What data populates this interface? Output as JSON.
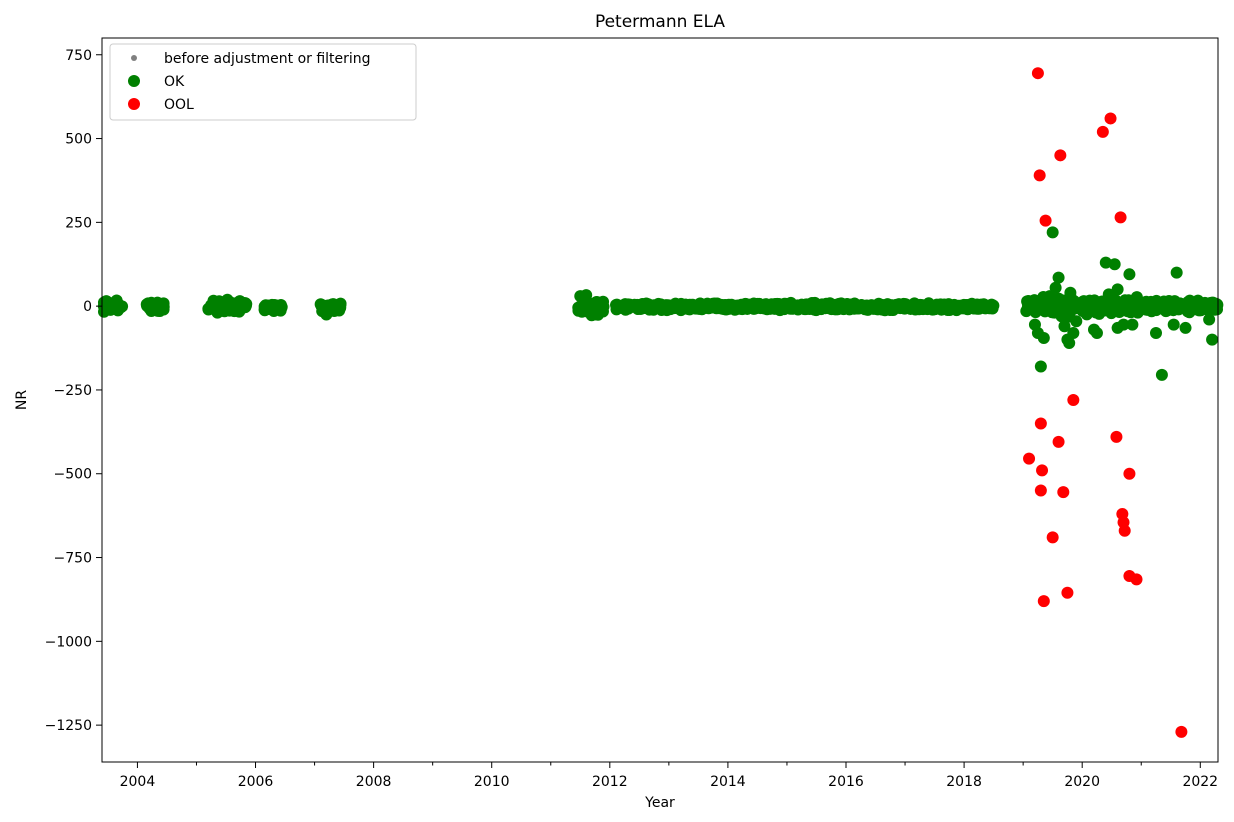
{
  "chart_data": {
    "type": "scatter",
    "title": "Petermann ELA",
    "xlabel": "Year",
    "ylabel": "NR",
    "xlim": [
      2003.4,
      2022.3
    ],
    "ylim": [
      -1360,
      800
    ],
    "grid": false,
    "legend_position": "top-left",
    "x_ticks": [
      "2004",
      "2006",
      "2008",
      "2010",
      "2012",
      "2014",
      "2016",
      "2018",
      "2020",
      "2022"
    ],
    "y_ticks": [
      "750",
      "500",
      "250",
      "0",
      "−250",
      "−500",
      "−750",
      "−1000",
      "−1250"
    ],
    "legend": [
      {
        "label": "before adjustment or filtering",
        "color": "#808080",
        "marker": "small-dot"
      },
      {
        "label": "OK",
        "color": "#008000",
        "marker": "dot"
      },
      {
        "label": "OOL",
        "color": "#ff0000",
        "marker": "dot"
      }
    ],
    "series": [
      {
        "name": "OK",
        "color": "#008000",
        "clusters": [
          [
            2003.4,
            2003.75,
            0,
            15
          ],
          [
            2004.15,
            2004.45,
            -2,
            12
          ],
          [
            2005.2,
            2005.85,
            0,
            16
          ],
          [
            2006.15,
            2006.45,
            -2,
            10
          ],
          [
            2007.1,
            2007.45,
            -4,
            12
          ],
          [
            2011.45,
            2011.9,
            -4,
            18
          ],
          [
            2012.1,
            2018.5,
            -2,
            9
          ],
          [
            2019.05,
            2019.9,
            0,
            24
          ],
          [
            2020.0,
            2020.95,
            0,
            22
          ],
          [
            2021.05,
            2022.3,
            0,
            14
          ]
        ],
        "points": [
          [
            2007.2,
            -25
          ],
          [
            2011.5,
            30
          ],
          [
            2011.6,
            33
          ],
          [
            2011.75,
            -25
          ],
          [
            2019.2,
            -55
          ],
          [
            2019.25,
            -80
          ],
          [
            2019.3,
            -180
          ],
          [
            2019.35,
            -95
          ],
          [
            2019.45,
            30
          ],
          [
            2019.5,
            220
          ],
          [
            2019.55,
            55
          ],
          [
            2019.6,
            85
          ],
          [
            2019.65,
            -30
          ],
          [
            2019.7,
            -60
          ],
          [
            2019.75,
            -100
          ],
          [
            2019.78,
            -110
          ],
          [
            2019.8,
            40
          ],
          [
            2019.85,
            -80
          ],
          [
            2019.9,
            -45
          ],
          [
            2020.2,
            -70
          ],
          [
            2020.25,
            -80
          ],
          [
            2020.4,
            130
          ],
          [
            2020.45,
            35
          ],
          [
            2020.55,
            125
          ],
          [
            2020.6,
            -65
          ],
          [
            2020.6,
            50
          ],
          [
            2020.7,
            -55
          ],
          [
            2020.8,
            95
          ],
          [
            2020.85,
            -55
          ],
          [
            2021.25,
            -80
          ],
          [
            2021.35,
            -205
          ],
          [
            2021.55,
            -55
          ],
          [
            2021.6,
            100
          ],
          [
            2021.75,
            -65
          ],
          [
            2022.15,
            -40
          ],
          [
            2022.2,
            -100
          ]
        ]
      },
      {
        "name": "OOL",
        "color": "#ff0000",
        "points": [
          [
            2019.1,
            -455
          ],
          [
            2019.25,
            695
          ],
          [
            2019.28,
            390
          ],
          [
            2019.3,
            -350
          ],
          [
            2019.32,
            -490
          ],
          [
            2019.3,
            -550
          ],
          [
            2019.35,
            -880
          ],
          [
            2019.38,
            255
          ],
          [
            2019.5,
            -690
          ],
          [
            2019.63,
            450
          ],
          [
            2019.6,
            -405
          ],
          [
            2019.68,
            -555
          ],
          [
            2019.75,
            -855
          ],
          [
            2019.85,
            -280
          ],
          [
            2020.35,
            520
          ],
          [
            2020.48,
            560
          ],
          [
            2020.58,
            -390
          ],
          [
            2020.65,
            265
          ],
          [
            2020.68,
            -620
          ],
          [
            2020.7,
            -645
          ],
          [
            2020.72,
            -670
          ],
          [
            2020.8,
            -500
          ],
          [
            2020.8,
            -805
          ],
          [
            2020.92,
            -815
          ],
          [
            2021.68,
            -1270
          ]
        ]
      }
    ]
  }
}
